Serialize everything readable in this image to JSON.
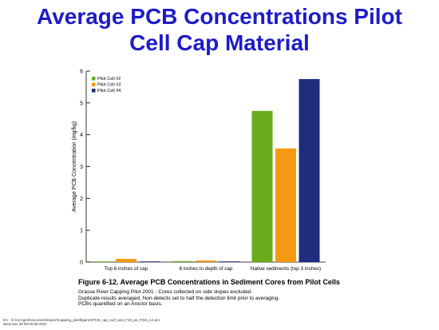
{
  "slide": {
    "title_line1": "Average PCB Concentrations Pilot",
    "title_line2": "Cell Cap Material"
  },
  "chart_data": {
    "type": "bar",
    "ylabel": "Average PCB Concentration (mg/kg)",
    "xlabel": "",
    "ylim": [
      0,
      6
    ],
    "yticks": [
      0,
      1,
      2,
      3,
      4,
      5,
      6
    ],
    "categories": [
      "Top 6 inches of cap",
      "6 inches to depth of cap",
      "Native sediments (top 3 inches)"
    ],
    "series": [
      {
        "name": "Pilot Cell #2",
        "color": "#6aac1c",
        "values": [
          0.02,
          0.03,
          4.75
        ]
      },
      {
        "name": "Pilot Cell #3",
        "color": "#f39a12",
        "values": [
          0.1,
          0.05,
          3.57
        ]
      },
      {
        "name": "Pilot Cell #4",
        "color": "#1e2d7d",
        "values": [
          0.02,
          0.02,
          5.75
        ]
      }
    ],
    "legend_position": "top-left",
    "grid": false
  },
  "caption": {
    "title": "Figure 6-12.  Average  PCB Concentrations in Sediment Cores from Pilot Cells",
    "lines": [
      "Grasse River Capping Pilot 2001 - Cores collected on side slopes excluded.",
      "Duplicate results averaged.  Non-detects set to half the detection limit prior to averaging.",
      "PCBs quantified on an Aroclor basis."
    ]
  },
  "footer": {
    "path": "EC - D:\\ALCgrs\\Documents\\report\\capping_pilot\\figures\\PCB_cap_surf_sed_F19_pe_FIG6_12.pro",
    "timestamp": "Wed Nov 28 09:00:09 2001"
  }
}
